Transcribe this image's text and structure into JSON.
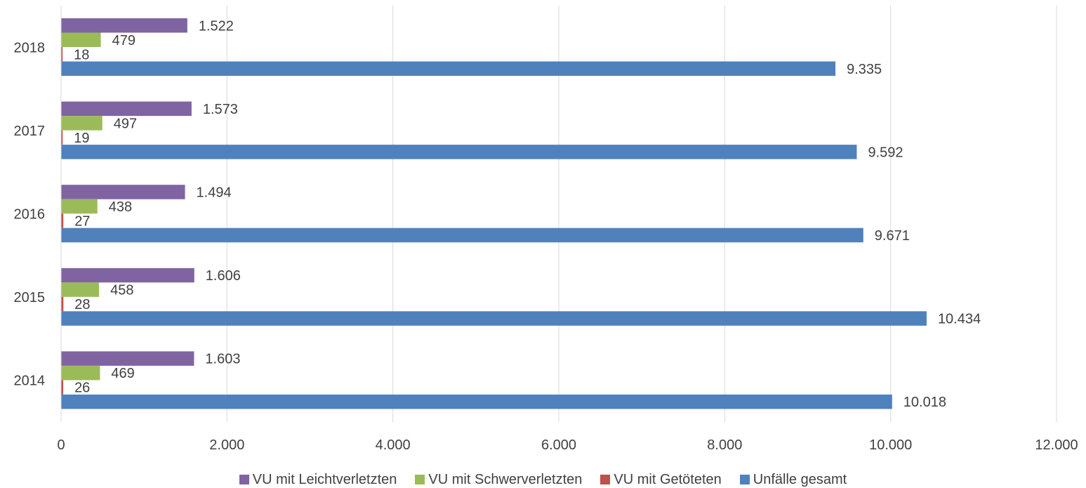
{
  "chart_data": {
    "type": "bar",
    "orientation": "horizontal",
    "categories": [
      "2014",
      "2015",
      "2016",
      "2017",
      "2018"
    ],
    "series": [
      {
        "name": "VU mit Leichtverletzten",
        "color": "#8064A2",
        "values": [
          1603,
          1606,
          1494,
          1573,
          1522
        ],
        "labels": [
          "1.603",
          "1.606",
          "1.494",
          "1.573",
          "1.522"
        ]
      },
      {
        "name": "VU mit Schwerverletzten",
        "color": "#9BBB59",
        "values": [
          469,
          458,
          438,
          497,
          479
        ],
        "labels": [
          "469",
          "458",
          "438",
          "497",
          "479"
        ]
      },
      {
        "name": "VU mit Getöteten",
        "color": "#C0504D",
        "values": [
          26,
          28,
          27,
          19,
          18
        ],
        "labels": [
          "26",
          "28",
          "27",
          "19",
          "18"
        ]
      },
      {
        "name": "Unfälle gesamt",
        "color": "#4F81BD",
        "values": [
          10018,
          10434,
          9671,
          9592,
          9335
        ],
        "labels": [
          "10.018",
          "10.434",
          "9.671",
          "9.592",
          "9.335"
        ]
      }
    ],
    "xlim": [
      0,
      12000
    ],
    "x_ticks": [
      0,
      2000,
      4000,
      6000,
      8000,
      10000,
      12000
    ],
    "x_tick_labels": [
      "0",
      "2.000",
      "4.000",
      "6.000",
      "8.000",
      "10.000",
      "12.000"
    ],
    "grid": "vertical",
    "legend_position": "bottom",
    "gridline_color": "#D9D9D9"
  }
}
